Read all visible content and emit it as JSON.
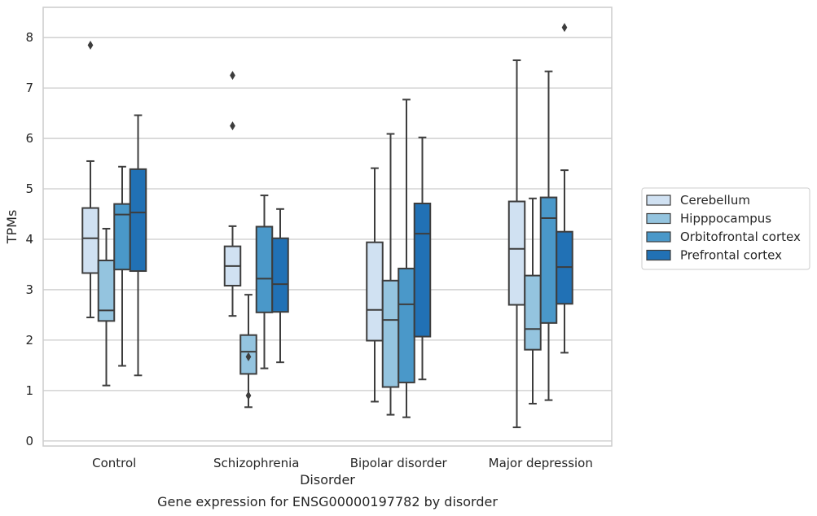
{
  "chart_data": {
    "type": "box",
    "title": "",
    "caption": "Gene expression for ENSG00000197782 by disorder",
    "xlabel": "Disorder",
    "ylabel": "TPMs",
    "ylim": [
      -0.1,
      8.6
    ],
    "yticks": [
      0,
      1,
      2,
      3,
      4,
      5,
      6,
      7,
      8
    ],
    "grid": "horizontal",
    "legend_position": "right",
    "categories": [
      "Control",
      "Schizophrenia",
      "Bipolar disorder",
      "Major depression"
    ],
    "series": [
      {
        "name": "Cerebellum",
        "color": "#d0e1f2",
        "boxes": [
          {
            "whisker_low": 2.45,
            "q1": 3.33,
            "median": 4.02,
            "q3": 4.62,
            "whisker_high": 5.55,
            "outliers": [
              7.85
            ]
          },
          {
            "whisker_low": 2.48,
            "q1": 3.08,
            "median": 3.47,
            "q3": 3.86,
            "whisker_high": 4.26,
            "outliers": [
              7.25,
              6.25
            ]
          },
          {
            "whisker_low": 0.78,
            "q1": 1.99,
            "median": 2.6,
            "q3": 3.94,
            "whisker_high": 5.41,
            "outliers": []
          },
          {
            "whisker_low": 0.27,
            "q1": 2.7,
            "median": 3.81,
            "q3": 4.75,
            "whisker_high": 7.55,
            "outliers": []
          }
        ]
      },
      {
        "name": "Hipppocampus",
        "color": "#94c4df",
        "boxes": [
          {
            "whisker_low": 1.1,
            "q1": 2.38,
            "median": 2.59,
            "q3": 3.58,
            "whisker_high": 4.21,
            "outliers": []
          },
          {
            "whisker_low": 0.67,
            "q1": 1.33,
            "median": 1.77,
            "q3": 2.1,
            "whisker_high": 2.9,
            "outliers": [
              1.67,
              0.9
            ]
          },
          {
            "whisker_low": 0.52,
            "q1": 1.07,
            "median": 2.4,
            "q3": 3.18,
            "whisker_high": 6.09,
            "outliers": []
          },
          {
            "whisker_low": 0.74,
            "q1": 1.81,
            "median": 2.22,
            "q3": 3.28,
            "whisker_high": 4.81,
            "outliers": []
          }
        ]
      },
      {
        "name": "Orbitofrontal cortex",
        "color": "#4a98c9",
        "boxes": [
          {
            "whisker_low": 1.49,
            "q1": 3.4,
            "median": 4.49,
            "q3": 4.7,
            "whisker_high": 5.44,
            "outliers": []
          },
          {
            "whisker_low": 1.44,
            "q1": 2.55,
            "median": 3.22,
            "q3": 4.25,
            "whisker_high": 4.87,
            "outliers": []
          },
          {
            "whisker_low": 0.47,
            "q1": 1.16,
            "median": 2.71,
            "q3": 3.42,
            "whisker_high": 6.77,
            "outliers": []
          },
          {
            "whisker_low": 0.81,
            "q1": 2.34,
            "median": 4.42,
            "q3": 4.83,
            "whisker_high": 7.33,
            "outliers": []
          }
        ]
      },
      {
        "name": "Prefrontal cortex",
        "color": "#2171b5",
        "boxes": [
          {
            "whisker_low": 1.3,
            "q1": 3.37,
            "median": 4.53,
            "q3": 5.39,
            "whisker_high": 6.46,
            "outliers": []
          },
          {
            "whisker_low": 1.56,
            "q1": 2.56,
            "median": 3.11,
            "q3": 4.02,
            "whisker_high": 4.6,
            "outliers": []
          },
          {
            "whisker_low": 1.22,
            "q1": 2.07,
            "median": 4.11,
            "q3": 4.71,
            "whisker_high": 6.02,
            "outliers": []
          },
          {
            "whisker_low": 1.75,
            "q1": 2.72,
            "median": 3.45,
            "q3": 4.15,
            "whisker_high": 5.37,
            "outliers": [
              8.2
            ]
          }
        ]
      }
    ]
  }
}
